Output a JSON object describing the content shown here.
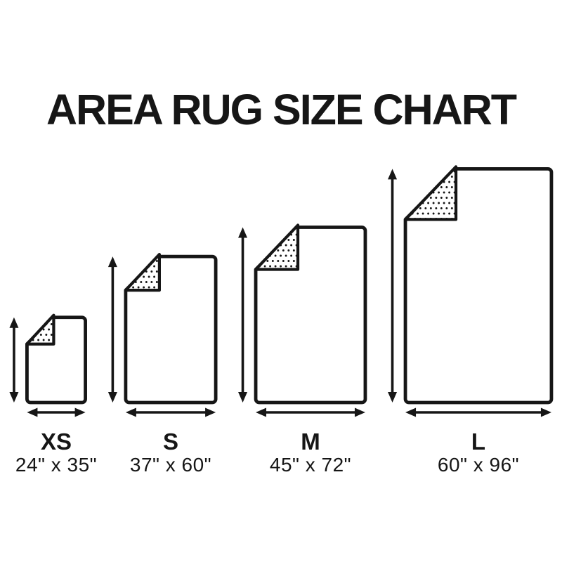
{
  "title": "AREA RUG SIZE CHART",
  "colors": {
    "ink": "#161616",
    "background": "#ffffff"
  },
  "rugs": [
    {
      "id": "xs",
      "label": "XS",
      "dimensions": "24\" x 35\"",
      "width_in": 24,
      "height_in": 35
    },
    {
      "id": "s",
      "label": "S",
      "dimensions": "37\" x 60\"",
      "width_in": 37,
      "height_in": 60
    },
    {
      "id": "m",
      "label": "M",
      "dimensions": "45\" x 72\"",
      "width_in": 45,
      "height_in": 72
    },
    {
      "id": "l",
      "label": "L",
      "dimensions": "60\" x 96\"",
      "width_in": 60,
      "height_in": 96
    }
  ]
}
